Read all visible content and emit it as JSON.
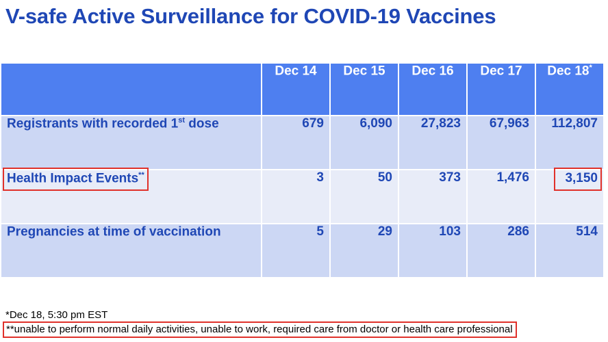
{
  "title": "V-safe Active Surveillance for COVID-19 Vaccines",
  "table": {
    "columns": [
      {
        "label": "Dec 14",
        "sup": ""
      },
      {
        "label": "Dec 15",
        "sup": ""
      },
      {
        "label": "Dec 16",
        "sup": ""
      },
      {
        "label": "Dec 17",
        "sup": ""
      },
      {
        "label": "Dec 18",
        "sup": "*"
      }
    ],
    "rows": [
      {
        "label": "Registrants with recorded 1",
        "label_sup": "st",
        "label_suffix": " dose",
        "values": [
          "679",
          "6,090",
          "27,823",
          "67,963",
          "112,807"
        ]
      },
      {
        "label": "Health Impact Events",
        "label_sup": "**",
        "label_suffix": "",
        "values": [
          "3",
          "50",
          "373",
          "1,476",
          "3,150"
        ]
      },
      {
        "label": "Pregnancies at time of vaccination",
        "label_sup": "",
        "label_suffix": "",
        "values": [
          "5",
          "29",
          "103",
          "286",
          "514"
        ]
      }
    ]
  },
  "footnotes": {
    "asterisk": "*Dec 18, 5:30 pm EST",
    "double_asterisk": "**unable to perform normal daily activities, unable to work, required care from doctor or health care professional"
  },
  "colors": {
    "title": "#1f47b5",
    "header_bg": "#4e7ff0",
    "row_dark": "#ccd7f4",
    "row_light": "#e8ecf8",
    "highlight_box": "#e0302a"
  }
}
